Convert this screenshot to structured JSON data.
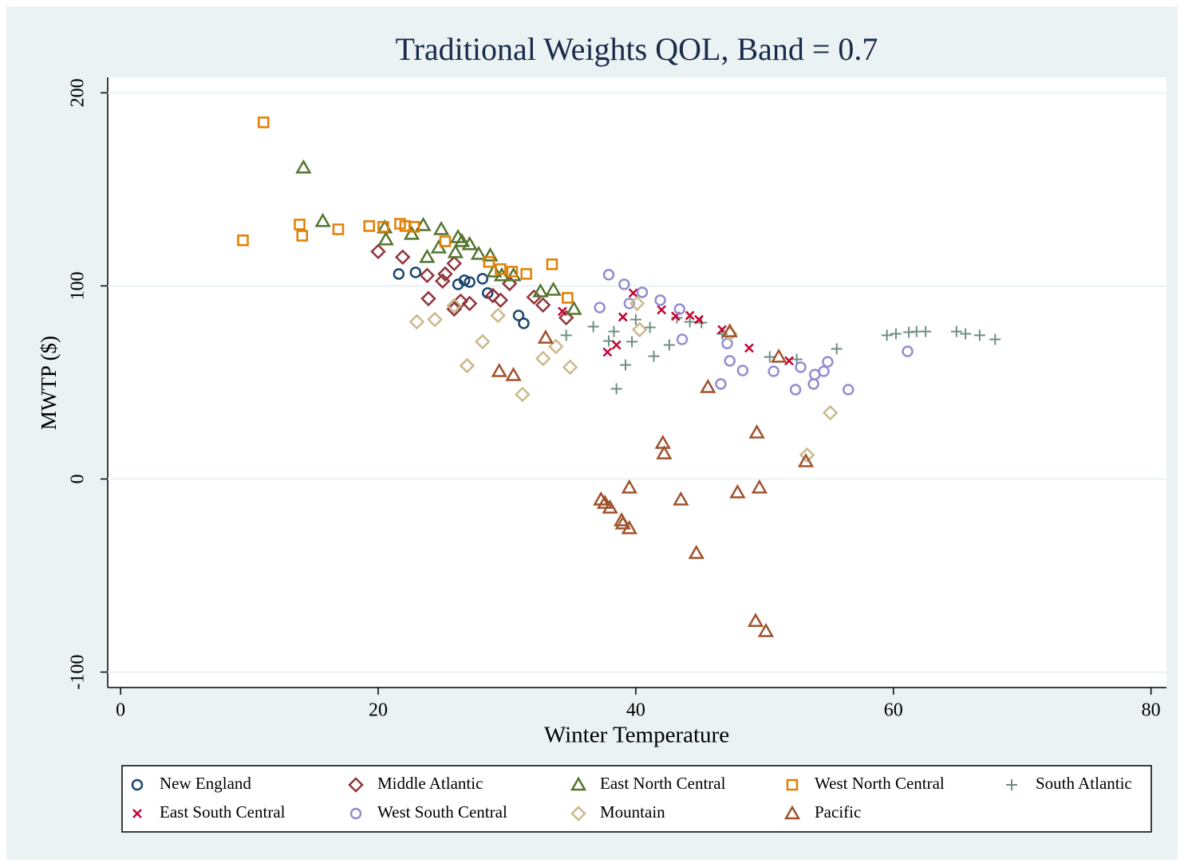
{
  "chart_data": {
    "type": "scatter",
    "title": "Traditional Weights QOL, Band = 0.7",
    "x_label": "Winter Temperature",
    "y_label": "MWTP ($)",
    "xlim": [
      -1,
      81.2
    ],
    "ylim": [
      -108,
      208
    ],
    "xticks": [
      0,
      20,
      40,
      60,
      80
    ],
    "yticks": [
      -100,
      0,
      100,
      200
    ],
    "grid": true,
    "legend_position": "bottom",
    "series": [
      {
        "name": "New England",
        "color": "#1a476f",
        "marker": "circle",
        "x": [
          21.6,
          22.9,
          26.2,
          26.7,
          27.1,
          28.1,
          28.5,
          30.9,
          31.3
        ],
        "values": [
          106.2,
          107,
          100.8,
          102.9,
          102,
          103.7,
          96.3,
          84.7,
          80.6
        ]
      },
      {
        "name": "Middle Atlantic",
        "color": "#90353b",
        "marker": "diamond",
        "x": [
          20.0,
          21.9,
          23.8,
          23.9,
          25.0,
          25.2,
          25.9,
          26.4,
          27.1,
          28.9,
          29.5,
          30.2,
          32.1,
          32.8,
          34.6,
          25.9
        ],
        "values": [
          117.8,
          114.9,
          105.4,
          93.4,
          102.5,
          106.2,
          88.0,
          92.1,
          90.9,
          95.0,
          92.6,
          101.2,
          94.2,
          90.1,
          83.5,
          111.6
        ]
      },
      {
        "name": "East North Central",
        "color": "#55752f",
        "marker": "triangle",
        "x": [
          14.2,
          15.7,
          20.5,
          20.6,
          22.6,
          23.5,
          23.8,
          24.9,
          24.7,
          26.0,
          26.2,
          26.5,
          27.1,
          27.8,
          28.7,
          29.0,
          29.6,
          30.5,
          32.6,
          33.6,
          35.2
        ],
        "values": [
          161.2,
          133.5,
          130.2,
          124.0,
          126.9,
          131.4,
          114.9,
          129.3,
          119.8,
          117.4,
          125.2,
          123.1,
          121.5,
          116.5,
          115.7,
          107.4,
          105.4,
          105.4,
          97.1,
          97.9,
          88.0
        ]
      },
      {
        "name": "West North Central",
        "color": "#e37e00",
        "marker": "square",
        "x": [
          9.5,
          11.1,
          13.9,
          14.1,
          16.9,
          19.3,
          20.4,
          21.7,
          22.1,
          22.8,
          25.2,
          28.6,
          29.5,
          30.4,
          31.5,
          33.5,
          34.7
        ],
        "values": [
          123.6,
          184.7,
          131.8,
          126.0,
          129.3,
          131.0,
          130.6,
          132.2,
          131.0,
          130.6,
          123.1,
          112.4,
          108.7,
          107.4,
          106.2,
          111.2,
          93.8
        ]
      },
      {
        "name": "South Atlantic",
        "color": "#6e8e84",
        "marker": "plus",
        "x": [
          34.6,
          36.7,
          37.9,
          38.3,
          38.5,
          39.2,
          39.7,
          40.0,
          41.1,
          41.4,
          42.6,
          43.2,
          44.2,
          45.1,
          46.7,
          50.4,
          52.5,
          55.6,
          59.5,
          60.2,
          61.2,
          61.8,
          62.5,
          64.9,
          65.6,
          66.7,
          67.9
        ],
        "values": [
          74.4,
          78.9,
          71.5,
          76.4,
          46.7,
          59.1,
          71.1,
          82.6,
          78.5,
          63.6,
          69.4,
          83.5,
          81.4,
          81.0,
          75.2,
          63.2,
          62.0,
          67.4,
          74.4,
          75.2,
          76.0,
          76.4,
          76.4,
          76.4,
          75.2,
          74.4,
          72.3
        ]
      },
      {
        "name": "East South Central",
        "color": "#c10534",
        "marker": "x",
        "x": [
          34.3,
          37.8,
          38.5,
          39.0,
          39.8,
          42.0,
          43.1,
          44.2,
          44.9,
          46.7,
          48.8,
          51.9
        ],
        "values": [
          86.8,
          65.7,
          69.4,
          83.9,
          96.3,
          87.6,
          84.3,
          84.7,
          82.6,
          77.3,
          67.8,
          61.2
        ]
      },
      {
        "name": "West South Central",
        "color": "#938dd2",
        "marker": "circle",
        "x": [
          37.2,
          37.9,
          39.1,
          39.5,
          40.5,
          41.9,
          43.4,
          43.6,
          46.6,
          47.1,
          47.3,
          48.3,
          50.7,
          52.4,
          52.8,
          53.8,
          53.9,
          54.6,
          54.9,
          56.5,
          61.1
        ],
        "values": [
          88.8,
          105.8,
          100.8,
          90.9,
          96.7,
          92.6,
          88.0,
          72.3,
          49.2,
          70.2,
          61.2,
          56.2,
          55.8,
          46.3,
          57.9,
          49.2,
          54.1,
          55.8,
          60.7,
          46.3,
          66.1
        ]
      },
      {
        "name": "Mountain",
        "color": "#cab98a",
        "marker": "diamond",
        "x": [
          23.0,
          24.4,
          25.9,
          26.9,
          28.1,
          29.3,
          31.2,
          32.8,
          33.8,
          34.9,
          40.1,
          40.3,
          47.3,
          53.3,
          55.1
        ],
        "values": [
          81.4,
          82.6,
          89.7,
          58.7,
          71.1,
          84.7,
          43.8,
          62.4,
          68.6,
          57.9,
          90.9,
          77.3,
          75.2,
          12.4,
          34.3
        ]
      },
      {
        "name": "Pacific",
        "color": "#a0522d",
        "marker": "triangle",
        "x": [
          29.4,
          30.5,
          33.0,
          37.3,
          37.6,
          38.0,
          38.9,
          39.0,
          39.5,
          39.5,
          42.1,
          42.2,
          43.5,
          44.7,
          45.6,
          47.3,
          47.9,
          49.4,
          49.6,
          49.3,
          50.1,
          51.1,
          53.2
        ],
        "values": [
          55.8,
          53.7,
          73.1,
          -10.7,
          -12.4,
          -14.9,
          -21.5,
          -23.1,
          -25.6,
          -4.5,
          18.6,
          13.2,
          -10.7,
          -38.4,
          47.5,
          76.4,
          -7.0,
          24.0,
          -4.5,
          -73.6,
          -78.9,
          63.2,
          9.1
        ]
      }
    ]
  }
}
